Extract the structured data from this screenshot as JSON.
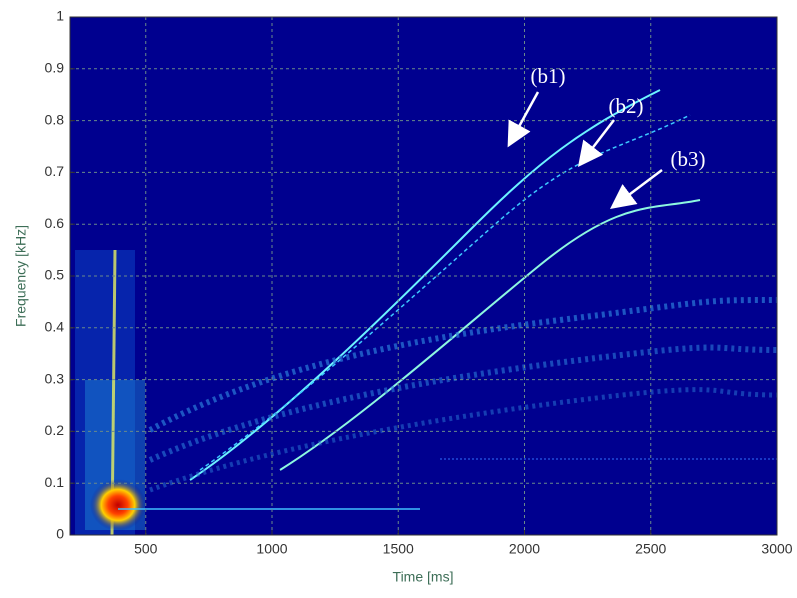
{
  "chart_data": {
    "type": "spectrogram",
    "x_label": "Time [ms]",
    "y_label": "Frequency [kHz]",
    "xlim": [
      200,
      3000
    ],
    "xticks": [
      500,
      1000,
      1500,
      2000,
      2500,
      3000
    ],
    "ylim": [
      0,
      1
    ],
    "yticks": [
      0,
      0.1,
      0.2,
      0.3,
      0.4,
      0.5,
      0.6,
      0.7,
      0.8,
      0.9,
      1
    ],
    "grid": true,
    "annotations": [
      "(b1)",
      "(b2)",
      "(b3)"
    ]
  }
}
